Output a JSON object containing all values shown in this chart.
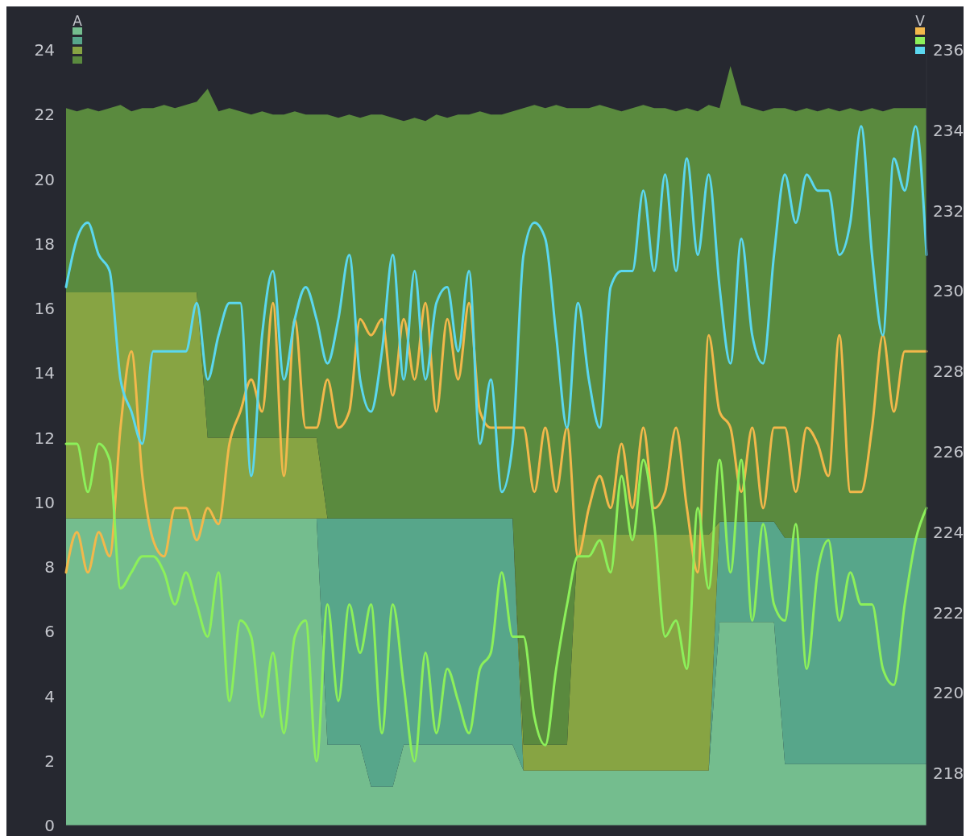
{
  "chart_data": {
    "type": "area",
    "ylabel": "A",
    "y2label": "V",
    "stacked": true,
    "ylim": [
      0,
      24
    ],
    "yticks": [
      0,
      2,
      4,
      6,
      8,
      10,
      12,
      14,
      16,
      18,
      20,
      22,
      24
    ],
    "y2lim": [
      216.7,
      236
    ],
    "y2ticks": [
      218,
      220,
      222,
      224,
      226,
      228,
      230,
      232,
      234,
      236
    ],
    "categories": [
      null,
      null,
      null,
      null,
      null,
      null,
      null,
      null,
      null,
      null,
      null,
      null,
      null,
      null,
      null,
      null,
      null,
      null,
      null,
      null,
      null,
      null,
      null,
      null,
      null,
      null,
      null,
      null,
      null,
      null,
      null,
      null,
      null,
      null,
      null,
      null,
      null,
      null,
      null,
      null,
      null,
      null,
      null,
      null,
      null,
      null,
      null,
      null,
      null,
      null,
      null,
      null,
      null,
      null,
      null,
      null,
      null,
      null,
      null,
      null,
      null,
      null,
      null,
      null,
      null,
      null,
      null,
      null,
      null,
      null,
      null,
      null,
      null,
      null,
      null,
      null,
      null,
      null,
      null,
      null
    ],
    "series": [
      {
        "color": "#74bd8e",
        "values": [
          9.5,
          9.5,
          9.5,
          9.5,
          9.5,
          9.5,
          9.5,
          9.5,
          9.5,
          9.5,
          9.5,
          9.5,
          9.5,
          9.5,
          9.5,
          9.5,
          9.5,
          9.5,
          9.5,
          9.5,
          9.5,
          9.5,
          9.5,
          9.5,
          2.5,
          2.5,
          2.5,
          2.5,
          1.2,
          1.2,
          1.2,
          2.5,
          2.5,
          2.5,
          2.5,
          2.5,
          2.5,
          2.5,
          2.5,
          2.5,
          2.5,
          2.5,
          1.7,
          1.7,
          1.7,
          1.7,
          1.7,
          1.7,
          1.7,
          1.7,
          1.7,
          1.7,
          1.7,
          1.7,
          1.7,
          1.7,
          1.7,
          1.7,
          1.7,
          1.7,
          6.3,
          6.3,
          6.3,
          6.3,
          6.3,
          6.3,
          1.9,
          1.9,
          1.9,
          1.9,
          1.9,
          1.9,
          1.9,
          1.9,
          1.9,
          1.9,
          1.9,
          1.9,
          1.9,
          1.9
        ]
      },
      {
        "color": "#57a68a",
        "values": [
          0,
          0,
          0,
          0,
          0,
          0,
          0,
          0,
          0,
          0,
          0,
          0,
          0,
          0,
          0,
          0,
          0,
          0,
          0,
          0,
          0,
          0,
          0,
          0,
          7,
          7,
          7,
          7,
          8.3,
          8.3,
          8.3,
          7,
          7,
          7,
          7,
          7,
          7,
          7,
          7,
          7,
          7,
          7,
          0,
          0,
          0,
          0,
          0,
          0,
          0,
          0,
          0,
          0,
          0,
          0,
          0,
          0,
          0,
          0,
          0,
          0,
          3.1,
          3.1,
          3.1,
          3.1,
          3.1,
          3.1,
          7,
          7,
          7,
          7,
          7,
          7,
          7,
          7,
          7,
          7,
          7,
          7,
          7,
          7
        ]
      },
      {
        "color": "#87a443",
        "values": [
          7,
          7,
          7,
          7,
          7,
          7,
          7,
          7,
          7,
          7,
          7,
          7,
          7,
          2.5,
          2.5,
          2.5,
          2.5,
          2.5,
          2.5,
          2.5,
          2.5,
          2.5,
          2.5,
          2.5,
          0,
          0,
          0,
          0,
          0,
          0,
          0,
          0,
          0,
          0,
          0,
          0,
          0,
          0,
          0,
          0,
          0,
          0,
          0.8,
          0.8,
          0.8,
          0.8,
          0.8,
          7.3,
          7.3,
          7.3,
          7.3,
          7.3,
          7.3,
          7.3,
          7.3,
          7.3,
          7.3,
          7.3,
          7.3,
          7.3,
          0,
          0,
          0,
          0,
          0,
          0,
          0,
          0,
          0,
          0,
          0,
          0,
          0,
          0,
          0,
          0,
          0,
          0,
          0,
          0
        ]
      },
      {
        "color": "#5a8a3e",
        "values": [
          5.7,
          5.6,
          5.7,
          5.6,
          5.7,
          5.8,
          5.6,
          5.7,
          5.7,
          5.8,
          5.7,
          5.8,
          5.9,
          10.8,
          10.1,
          10.2,
          10.1,
          10,
          10.1,
          10,
          10,
          10.1,
          10,
          10,
          12.5,
          12.4,
          12.5,
          12.4,
          12.5,
          12.5,
          12.4,
          12.3,
          12.4,
          12.3,
          12.5,
          12.4,
          12.5,
          12.5,
          12.6,
          12.5,
          12.5,
          12.6,
          19.7,
          19.8,
          19.7,
          19.8,
          19.7,
          13.2,
          13.2,
          13.3,
          13.2,
          13.1,
          13.2,
          13.3,
          13.2,
          13.2,
          13.1,
          13.2,
          13.1,
          13.3,
          12.8,
          14.1,
          12.9,
          12.8,
          12.7,
          12.8,
          13.3,
          13.2,
          13.3,
          13.2,
          13.3,
          13.2,
          13.3,
          13.2,
          13.3,
          13.2,
          13.3,
          13.3,
          13.3,
          13.3
        ]
      },
      {
        "type": "line",
        "axis": "y2",
        "color": "#f2b84b",
        "values": [
          223.0,
          224.0,
          223.0,
          224.0,
          223.4,
          226.6,
          228.5,
          225.4,
          223.8,
          223.4,
          224.6,
          224.6,
          223.8,
          224.6,
          224.2,
          226.2,
          227.0,
          227.8,
          227.0,
          229.7,
          225.4,
          229.3,
          226.6,
          226.6,
          227.8,
          226.6,
          227.0,
          229.3,
          228.9,
          229.3,
          227.4,
          229.3,
          227.8,
          229.7,
          227.0,
          229.3,
          227.8,
          229.7,
          227.0,
          226.6,
          226.6,
          226.6,
          226.6,
          225.0,
          226.6,
          225.0,
          226.6,
          223.4,
          224.6,
          225.4,
          224.6,
          226.2,
          224.6,
          226.6,
          224.6,
          225.0,
          226.6,
          224.6,
          223.0,
          228.9,
          227.0,
          226.6,
          225.0,
          226.6,
          224.6,
          226.6,
          226.6,
          225.0,
          226.6,
          226.2,
          225.4,
          228.9,
          225.0,
          225.0,
          226.6,
          228.9,
          227.0,
          228.5,
          228.5,
          228.5
        ]
      },
      {
        "type": "line",
        "axis": "y2",
        "color": "#8cf05a",
        "values": [
          226.2,
          226.2,
          225.0,
          226.2,
          225.8,
          222.6,
          223.0,
          223.4,
          223.4,
          223.0,
          222.2,
          223.0,
          222.2,
          221.4,
          223.0,
          219.8,
          221.8,
          221.4,
          219.4,
          221.0,
          219.0,
          221.4,
          221.8,
          218.3,
          222.2,
          219.8,
          222.2,
          221.0,
          222.2,
          219.0,
          222.2,
          220.2,
          218.3,
          221.0,
          219.0,
          220.6,
          219.8,
          219.0,
          220.6,
          221.0,
          223.0,
          221.4,
          221.4,
          219.4,
          218.7,
          220.6,
          222.2,
          223.4,
          223.4,
          223.8,
          223.0,
          225.4,
          223.8,
          225.8,
          224.2,
          221.4,
          221.8,
          220.6,
          224.6,
          222.6,
          225.8,
          223.0,
          225.8,
          221.8,
          224.2,
          222.2,
          221.8,
          224.2,
          220.6,
          223.0,
          223.8,
          221.8,
          223.0,
          222.2,
          222.2,
          220.6,
          220.2,
          222.2,
          223.8,
          224.6
        ]
      },
      {
        "type": "line",
        "axis": "y2",
        "color": "#5bd7ef",
        "values": [
          230.1,
          231.3,
          231.7,
          230.9,
          230.5,
          227.8,
          227.0,
          226.2,
          228.5,
          228.5,
          228.5,
          228.5,
          229.7,
          227.8,
          228.9,
          229.7,
          229.7,
          225.4,
          228.9,
          230.5,
          227.8,
          229.3,
          230.1,
          229.3,
          228.2,
          229.3,
          230.9,
          227.8,
          227.0,
          228.5,
          230.9,
          227.8,
          230.5,
          227.8,
          229.7,
          230.1,
          228.5,
          230.5,
          226.2,
          227.8,
          225.0,
          226.2,
          230.9,
          231.7,
          231.3,
          228.9,
          226.6,
          229.7,
          227.8,
          226.6,
          230.1,
          230.5,
          230.5,
          232.5,
          230.5,
          232.9,
          230.5,
          233.3,
          230.9,
          232.9,
          230.1,
          228.2,
          231.3,
          228.9,
          228.2,
          230.9,
          232.9,
          231.7,
          232.9,
          232.5,
          232.5,
          230.9,
          231.7,
          234.1,
          230.9,
          228.9,
          233.3,
          232.5,
          234.1,
          230.9
        ]
      }
    ]
  }
}
